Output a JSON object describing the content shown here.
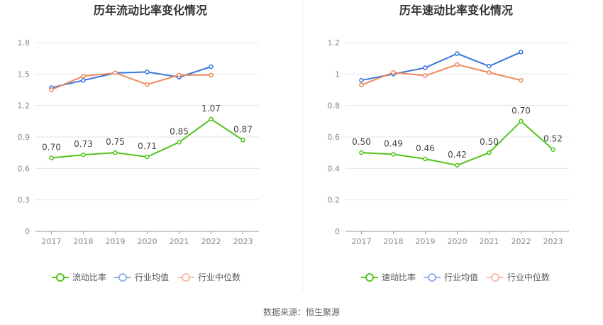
{
  "chart_data": [
    {
      "type": "line",
      "title": "历年流动比率变化情况",
      "categories": [
        "2017",
        "2018",
        "2019",
        "2020",
        "2021",
        "2022",
        "2023"
      ],
      "yticks": [
        "0",
        "0.3",
        "0.6",
        "0.9",
        "1.2",
        "1.5",
        "1.8"
      ],
      "ylim": [
        0,
        1.8
      ],
      "series": [
        {
          "name": "流动比率",
          "color": "#52c41a",
          "values": [
            0.7,
            0.73,
            0.75,
            0.71,
            0.85,
            1.07,
            0.87
          ],
          "labels": [
            "0.70",
            "0.73",
            "0.75",
            "0.71",
            "0.85",
            "1.07",
            "0.87"
          ]
        },
        {
          "name": "行业均值",
          "color": "#3a75dc",
          "values": [
            1.37,
            1.44,
            1.51,
            1.52,
            1.47,
            1.57,
            null
          ]
        },
        {
          "name": "行业中位数",
          "color": "#ee8a5f",
          "values": [
            1.35,
            1.48,
            1.51,
            1.4,
            1.49,
            1.49,
            null
          ]
        }
      ]
    },
    {
      "type": "line",
      "title": "历年速动比率变化情况",
      "categories": [
        "2017",
        "2018",
        "2019",
        "2020",
        "2021",
        "2022",
        "2023"
      ],
      "yticks": [
        "0",
        "0.2",
        "0.4",
        "0.6",
        "0.8",
        "1",
        "1.2"
      ],
      "ylim": [
        0,
        1.2
      ],
      "series": [
        {
          "name": "速动比率",
          "color": "#52c41a",
          "values": [
            0.5,
            0.49,
            0.46,
            0.42,
            0.5,
            0.7,
            0.52
          ],
          "labels": [
            "0.50",
            "0.49",
            "0.46",
            "0.42",
            "0.50",
            "0.70",
            "0.52"
          ]
        },
        {
          "name": "行业均值",
          "color": "#3a75dc",
          "values": [
            0.96,
            1.0,
            1.04,
            1.13,
            1.05,
            1.14,
            null
          ]
        },
        {
          "name": "行业中位数",
          "color": "#ee8a5f",
          "values": [
            0.93,
            1.01,
            0.99,
            1.06,
            1.01,
            0.96,
            null
          ]
        }
      ]
    }
  ],
  "footer": {
    "source_text": "数据来源：恒生聚源"
  }
}
